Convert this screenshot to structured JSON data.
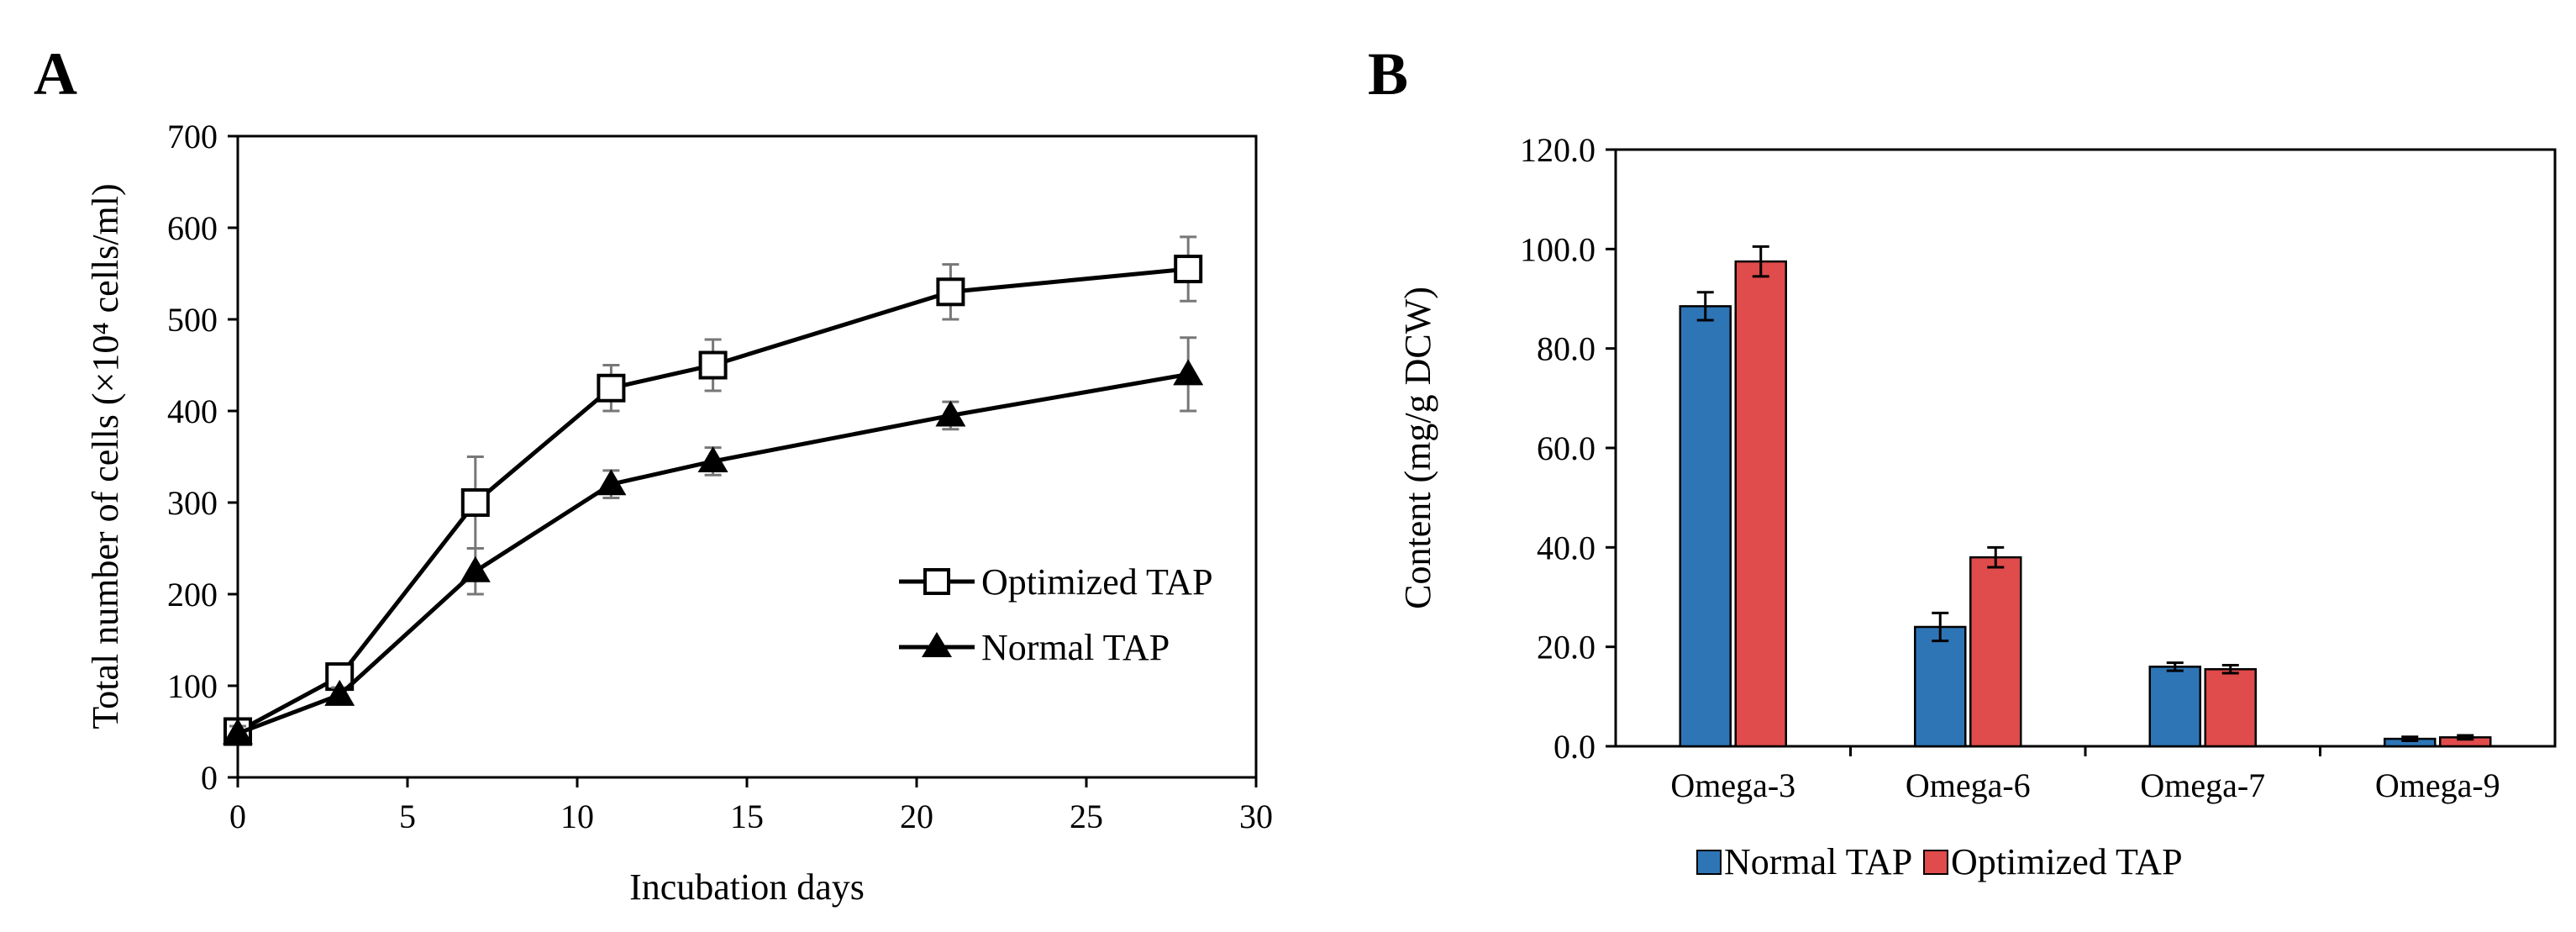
{
  "chart_data": [
    {
      "panel_label": "A",
      "type": "line",
      "title": "",
      "xlabel": "Incubation days",
      "ylabel": "Total number of cells (×10⁴ cells/ml)",
      "xlim": [
        0,
        30
      ],
      "ylim": [
        0,
        700
      ],
      "xticks": [
        "0",
        "5",
        "10",
        "15",
        "20",
        "25",
        "30"
      ],
      "yticks": [
        "0",
        "100",
        "200",
        "300",
        "400",
        "500",
        "600",
        "700"
      ],
      "legend_position": "right",
      "series": [
        {
          "name": "Optimized TAP",
          "marker": "open-square",
          "x": [
            0,
            3,
            7,
            11,
            14,
            21,
            28
          ],
          "y": [
            50,
            110,
            300,
            425,
            450,
            530,
            555
          ],
          "err": [
            10,
            10,
            50,
            25,
            28,
            30,
            35
          ]
        },
        {
          "name": "Normal TAP",
          "marker": "filled-triangle",
          "x": [
            0,
            3,
            7,
            11,
            14,
            21,
            28
          ],
          "y": [
            48,
            90,
            225,
            320,
            345,
            395,
            440
          ],
          "err": [
            8,
            8,
            25,
            15,
            15,
            15,
            40
          ]
        }
      ]
    },
    {
      "panel_label": "B",
      "type": "bar",
      "title": "",
      "xlabel": "",
      "ylabel": "Content (mg/g DCW)",
      "ylim": [
        0,
        120
      ],
      "yticks": [
        "0.0",
        "20.0",
        "40.0",
        "60.0",
        "80.0",
        "100.0",
        "120.0"
      ],
      "categories": [
        "Omega-3",
        "Omega-6",
        "Omega-7",
        "Omega-9"
      ],
      "legend_position": "bottom",
      "series": [
        {
          "name": "Normal TAP",
          "color": "#2E75B6",
          "values": [
            88.5,
            24.0,
            16.0,
            1.5
          ],
          "err": [
            2.8,
            2.8,
            0.8,
            0.4
          ]
        },
        {
          "name": "Optimized TAP",
          "color": "#E04B4B",
          "values": [
            97.5,
            38.0,
            15.5,
            1.8
          ],
          "err": [
            3.0,
            2.0,
            0.8,
            0.4
          ]
        }
      ]
    }
  ]
}
